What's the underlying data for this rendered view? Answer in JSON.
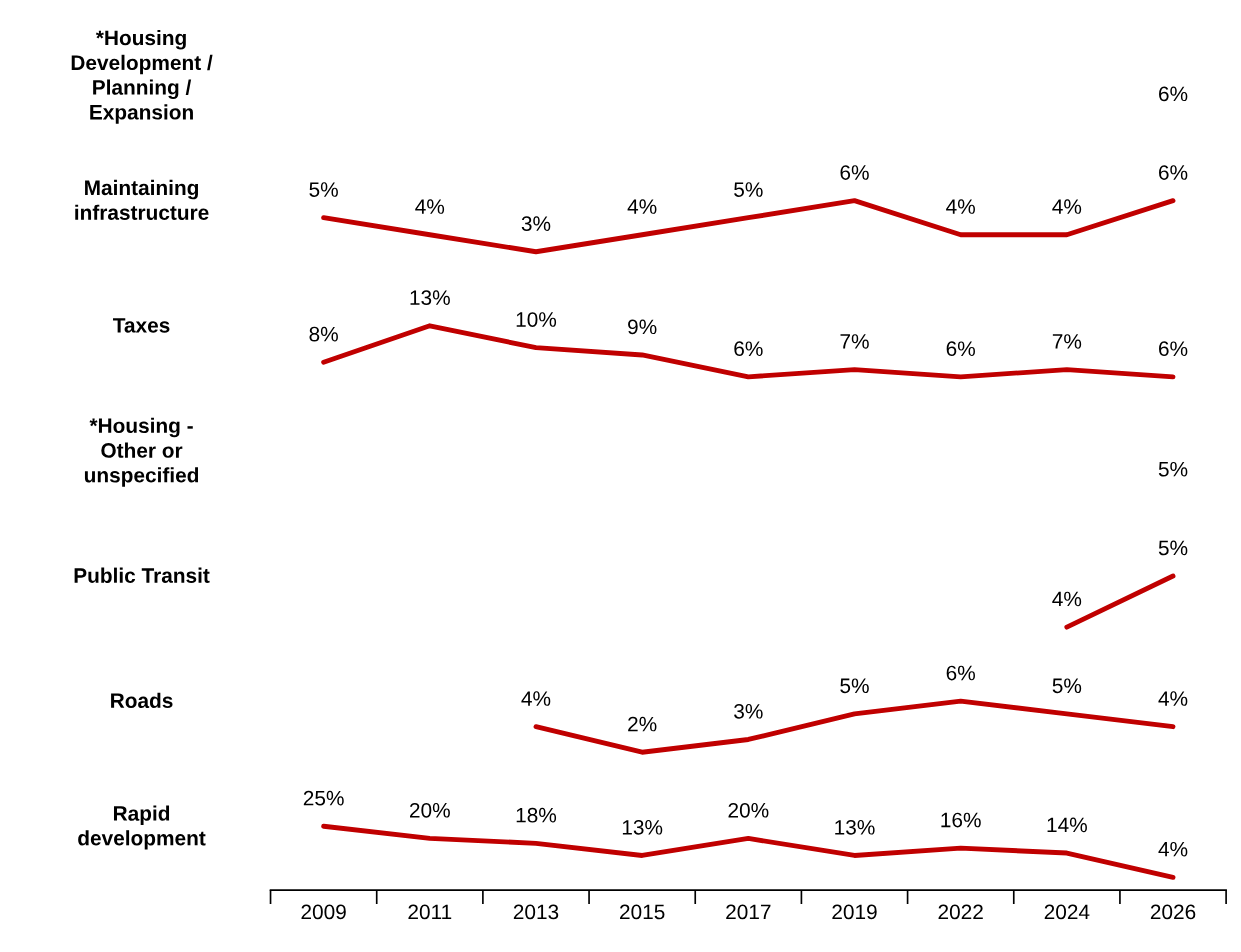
{
  "chart_data": [
    {
      "type": "other",
      "ylabel": "*Housing\nDevelopment /\nPlanning /\nExpansion",
      "annotations": [
        "6%"
      ]
    },
    {
      "type": "line",
      "ylabel": "Maintaining\ninfrastructure",
      "categories": [
        "2009",
        "2011",
        "2013",
        "2015",
        "2017",
        "2019",
        "2022",
        "2024",
        "2026"
      ],
      "tick_labels": false,
      "series": [
        {
          "color": "#c00000",
          "values": [
            5,
            4,
            3,
            4,
            5,
            6,
            4,
            4,
            6
          ],
          "value_labels": [
            "5%",
            "4%",
            "3%",
            "4%",
            "5%",
            "6%",
            "4%",
            "4%",
            "6%"
          ]
        }
      ]
    },
    {
      "type": "line",
      "ylabel": "Taxes",
      "categories": [
        "2009",
        "2011",
        "2013",
        "2015",
        "2017",
        "2019",
        "2022",
        "2024",
        "2026"
      ],
      "tick_labels": false,
      "series": [
        {
          "color": "#c00000",
          "values": [
            8,
            13,
            10,
            9,
            6,
            7,
            6,
            7,
            6
          ],
          "value_labels": [
            "8%",
            "13%",
            "10%",
            "9%",
            "6%",
            "7%",
            "6%",
            "7%",
            "6%"
          ]
        }
      ]
    },
    {
      "type": "other",
      "ylabel": "*Housing -\nOther or\nunspecified",
      "annotations": [
        "5%"
      ]
    },
    {
      "type": "line",
      "ylabel": "Public Transit",
      "categories": [
        "2009",
        "2011",
        "2013",
        "2015",
        "2017",
        "2019",
        "2022",
        "2024",
        "2026"
      ],
      "tick_labels": false,
      "series": [
        {
          "color": "#c00000",
          "values": [
            null,
            null,
            null,
            null,
            null,
            null,
            null,
            4,
            5
          ],
          "value_labels": [
            null,
            null,
            null,
            null,
            null,
            null,
            null,
            "4%",
            "5%"
          ]
        }
      ]
    },
    {
      "type": "line",
      "ylabel": "Roads",
      "categories": [
        "2009",
        "2011",
        "2013",
        "2015",
        "2017",
        "2019",
        "2022",
        "2024",
        "2026"
      ],
      "tick_labels": false,
      "series": [
        {
          "color": "#c00000",
          "values": [
            null,
            null,
            4,
            2,
            3,
            5,
            6,
            5,
            4
          ],
          "value_labels": [
            null,
            null,
            "4%",
            "2%",
            "3%",
            "5%",
            "6%",
            "5%",
            "4%"
          ]
        }
      ]
    },
    {
      "type": "line",
      "ylabel": "Rapid\ndevelopment",
      "categories": [
        "2009",
        "2011",
        "2013",
        "2015",
        "2017",
        "2019",
        "2022",
        "2024",
        "2026"
      ],
      "tick_labels": "x",
      "series": [
        {
          "color": "#c00000",
          "values": [
            25,
            20,
            18,
            13,
            20,
            13,
            16,
            14,
            4
          ],
          "value_labels": [
            "25%",
            "20%",
            "18%",
            "13%",
            "20%",
            "13%",
            "16%",
            "14%",
            "4%"
          ]
        }
      ]
    }
  ]
}
